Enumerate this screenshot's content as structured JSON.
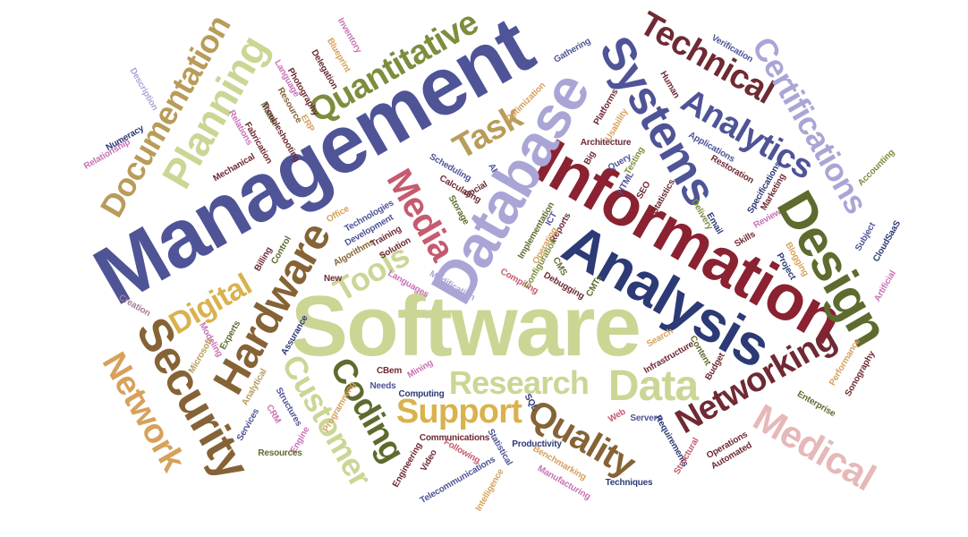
{
  "words": {
    "management": "Management",
    "software": "Software",
    "information": "Information",
    "database": "Database",
    "analysis": "Analysis",
    "systems": "Systems",
    "design": "Design",
    "security": "Security",
    "hardware": "Hardware",
    "planning": "Planning",
    "documentation": "Documentation",
    "quantitative": "Quantitative",
    "technical": "Technical",
    "certifications": "Certifications",
    "analytics": "Analytics",
    "networking": "Networking",
    "medical": "Medical",
    "data": "Data",
    "research": "Research",
    "support": "Support",
    "quality": "Quality",
    "coding": "Coding",
    "customer": "Customer",
    "network": "Network",
    "digital": "Digital",
    "tools": "Tools",
    "media": "Media",
    "task": "Task",
    "inventory": "Inventory",
    "blueprint": "Blueprint",
    "delegation": "Delegation",
    "language": "Language",
    "photography": "Photography",
    "resource": "Resource",
    "matter": "Matter",
    "erp": "ERP",
    "troubleshooting": "Troubleshooting",
    "fabrication": "Fabrication",
    "mechanical": "Mechanical",
    "relations": "Relations",
    "relationship": "Relationship",
    "numeracy": "Numeracy",
    "description": "Description",
    "gathering": "Gathering",
    "optimization": "Optimization",
    "verification": "Verification",
    "human": "Human",
    "platforms": "Platforms",
    "usability": "Usability",
    "architecture": "Architecture",
    "applications": "Applications",
    "restoration": "Restoration",
    "specifications": "Specifications",
    "marketing": "Marketing",
    "accounting": "Accounting",
    "scheduling": "Scheduling",
    "calculating": "Calculating",
    "ai": "AI",
    "big": "Big",
    "query": "Query",
    "testing": "Testing",
    "statistics": "Statistics",
    "seo": "SEO",
    "html": "HTML",
    "social": "Social",
    "storage": "Storage",
    "implementation": "Implementation",
    "ict": "ICT",
    "reports": "Reports",
    "operating": "Operating",
    "email": "Email",
    "delivery": "Delivery",
    "review": "Review",
    "skills": "Skills",
    "subject": "Subject",
    "cloudsaas": "CloudSaaS",
    "blogging": "Blogging",
    "project": "Project",
    "artificial": "Artificial",
    "office": "Office",
    "technologies": "Technologies",
    "development": "Development",
    "training": "Training",
    "solution": "Solution",
    "algorithms": "Algorithms",
    "control": "Control",
    "billing": "Billing",
    "languages": "Languages",
    "modification": "Modification",
    "compiling": "Compiling",
    "configuration": "Configuration",
    "cms": "CMS",
    "debugging": "Debugging",
    "cmts": "CMTs",
    "new": "New",
    "creation": "Creation",
    "modeling": "Modeling",
    "microsoft": "Microsoft",
    "experts": "Experts",
    "assurance": "Assurance",
    "analytical": "Analytical",
    "services": "Services",
    "crm": "CRM",
    "structures": "Structures",
    "engine": "Engine",
    "resources": "Resources",
    "cbem": "CBem",
    "mining": "Mining",
    "needs": "Needs",
    "programming": "Programming",
    "computing": "Computing",
    "communications": "Communications",
    "following": "Following",
    "engineering": "Engineering",
    "video": "Video",
    "telecommunications": "Telecommunications",
    "statistical": "Statistical",
    "intelligence": "Intelligence",
    "productivity": "Productivity",
    "benchmarking": "Benchmarking",
    "manufacturing": "Manufacturing",
    "techniques": "Techniques",
    "sql": "SQL",
    "web": "Web",
    "servers": "Servers",
    "requirements": "Requirements",
    "structural": "Structural",
    "operations": "Operations",
    "automated": "Automated",
    "search": "Search",
    "infrastructure": "Infrastructure",
    "content": "Content",
    "budget": "Budget",
    "performance": "Performance",
    "sonography": "Sonography",
    "enterprise": "Enterprise"
  }
}
